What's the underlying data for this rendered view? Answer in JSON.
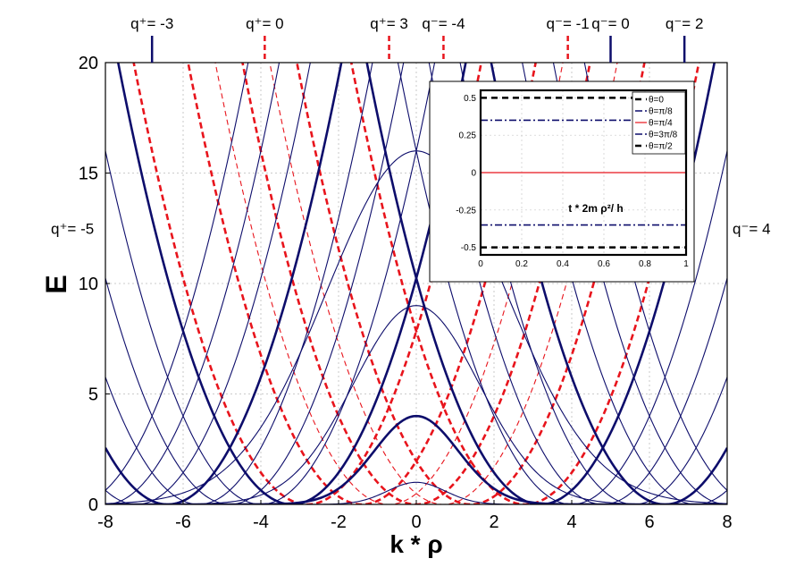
{
  "chart_data": {
    "main": {
      "type": "line",
      "xlabel": "k * ρ",
      "ylabel": "E",
      "xlim": [
        -8,
        8
      ],
      "ylim": [
        0,
        20
      ],
      "xticks": [
        "-8",
        "-6",
        "-4",
        "-2",
        "0",
        "2",
        "4",
        "6",
        "8"
      ],
      "yticks": [
        "0",
        "5",
        "10",
        "15",
        "20"
      ],
      "grid": true,
      "colors": {
        "blue": "#0d0d6b",
        "red": "#e8141c"
      },
      "curves": [
        {
          "type": "parabola",
          "center": 0,
          "style": "dashed-red",
          "width": "thick"
        },
        {
          "type": "parabola",
          "center": 0.7,
          "style": "dashed-red",
          "width": "thin"
        },
        {
          "type": "parabola",
          "center": 1.4,
          "style": "dashed-red",
          "width": "thick"
        },
        {
          "type": "parabola",
          "center": -0.7,
          "style": "dashed-red",
          "width": "thin"
        },
        {
          "type": "parabola",
          "center": -1.4,
          "style": "dashed-red",
          "width": "thick"
        },
        {
          "type": "parabola",
          "center": -2.8,
          "style": "dashed-red",
          "width": "thick"
        },
        {
          "type": "parabola",
          "center": 2.8,
          "style": "dashed-red",
          "width": "thick"
        },
        {
          "type": "parabola",
          "center": -3.2,
          "style": "solid-blue",
          "width": "thick"
        },
        {
          "type": "parabola",
          "center": -4.0,
          "style": "solid-blue",
          "width": "thin"
        },
        {
          "type": "parabola",
          "center": -4.8,
          "style": "solid-blue",
          "width": "thin"
        },
        {
          "type": "parabola",
          "center": -5.6,
          "style": "solid-blue",
          "width": "thin"
        },
        {
          "type": "parabola",
          "center": -6.4,
          "style": "solid-blue",
          "width": "thick"
        },
        {
          "type": "parabola",
          "center": -7.2,
          "style": "solid-blue",
          "width": "thin"
        },
        {
          "type": "parabola",
          "center": -8.0,
          "style": "solid-blue",
          "width": "thin"
        },
        {
          "type": "parabola",
          "center": -8.8,
          "style": "solid-blue",
          "width": "thin"
        },
        {
          "type": "parabola",
          "center": 3.2,
          "style": "solid-blue",
          "width": "thick"
        },
        {
          "type": "parabola",
          "center": 4.0,
          "style": "solid-blue",
          "width": "thin"
        },
        {
          "type": "parabola",
          "center": 4.8,
          "style": "solid-blue",
          "width": "thin"
        },
        {
          "type": "parabola",
          "center": 5.6,
          "style": "solid-blue",
          "width": "thin"
        },
        {
          "type": "parabola",
          "center": 6.4,
          "style": "solid-blue",
          "width": "thick"
        },
        {
          "type": "parabola",
          "center": 7.2,
          "style": "solid-blue",
          "width": "thin"
        },
        {
          "type": "parabola",
          "center": 8.0,
          "style": "solid-blue",
          "width": "thin"
        },
        {
          "type": "parabola",
          "center": 8.8,
          "style": "solid-blue",
          "width": "thin"
        },
        {
          "type": "bump",
          "peak": 1,
          "halfwidth": 1.1,
          "style": "solid-blue",
          "width": "thin"
        },
        {
          "type": "bump",
          "peak": 4,
          "halfwidth": 1.6,
          "style": "solid-blue",
          "width": "thick"
        },
        {
          "type": "bump",
          "peak": 9,
          "halfwidth": 2.4,
          "style": "solid-blue",
          "width": "thin"
        },
        {
          "type": "bump",
          "peak": 16,
          "halfwidth": 3.4,
          "style": "solid-blue",
          "width": "thin"
        }
      ],
      "annotations": [
        {
          "text": "q⁺= -3",
          "x": -6.8,
          "style": "solid-blue"
        },
        {
          "text": "q⁺= 0",
          "x": -3.9,
          "style": "dashed-red"
        },
        {
          "text": "q⁺= 3",
          "x": -0.7,
          "style": "dashed-red"
        },
        {
          "text": "q⁻= -4",
          "x": 0.7,
          "style": "dashed-red"
        },
        {
          "text": "q⁻= -1",
          "x": 3.9,
          "style": "dashed-red"
        },
        {
          "text": "q⁻= 0",
          "x": 5.0,
          "style": "solid-blue"
        },
        {
          "text": "q⁻= 2",
          "x": 6.9,
          "style": "solid-blue"
        },
        {
          "text": "q⁺= -5",
          "side": "left",
          "y": 12.5
        },
        {
          "text": "q⁻= 4",
          "side": "right",
          "y": 12.5
        }
      ]
    },
    "inset": {
      "type": "line",
      "xlabel": "t * 2m ρ²/ h",
      "xlim": [
        0,
        1
      ],
      "ylim": [
        -0.55,
        0.55
      ],
      "xticks": [
        "0",
        "0.2",
        "0.4",
        "0.6",
        "0.8",
        "1"
      ],
      "yticks": [
        "-0.5",
        "-0.25",
        "0",
        "0.25",
        "0.5"
      ],
      "grid": true,
      "series": [
        {
          "name": "θ=0",
          "value": 0.5,
          "style": "dashed-black"
        },
        {
          "name": "θ=π/8",
          "value": 0.35,
          "style": "dashdot-blue"
        },
        {
          "name": "θ=π/4",
          "value": 0,
          "style": "solid-red"
        },
        {
          "name": "θ=3π/8",
          "value": -0.35,
          "style": "dashdot-blue"
        },
        {
          "name": "θ=π/2",
          "value": -0.5,
          "style": "dashed-black"
        }
      ],
      "legend": "top-right"
    }
  }
}
